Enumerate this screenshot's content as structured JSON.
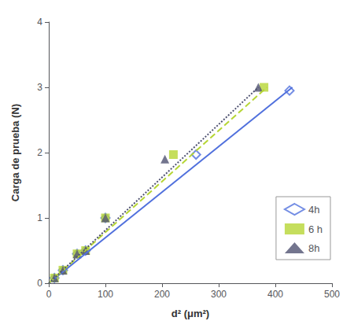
{
  "chart_data": {
    "type": "scatter",
    "xlabel": "d² (μm²)",
    "ylabel": "Carga de prueba (N)",
    "xlim": [
      0,
      500
    ],
    "ylim": [
      0,
      4
    ],
    "xticks": [
      0,
      100,
      200,
      300,
      400,
      500
    ],
    "yticks": [
      0,
      1,
      2,
      3,
      4
    ],
    "grid": false,
    "legend": "right",
    "series": [
      {
        "name": "4h",
        "marker": "open-diamond",
        "x": [
          10,
          25,
          50,
          65,
          100,
          260,
          425
        ],
        "values": [
          0.08,
          0.2,
          0.45,
          0.5,
          1.0,
          1.97,
          2.95
        ],
        "fit": {
          "x": [
            0,
            430
          ],
          "values": [
            0,
            3.0
          ],
          "line_style": "solid"
        }
      },
      {
        "name": "6 h",
        "marker": "square",
        "x": [
          10,
          25,
          50,
          65,
          100,
          220,
          380
        ],
        "values": [
          0.08,
          0.2,
          0.45,
          0.5,
          1.0,
          1.97,
          3.0
        ],
        "fit": {
          "x": [
            0,
            385
          ],
          "values": [
            0,
            3.0
          ],
          "line_style": "dashed"
        }
      },
      {
        "name": "8h",
        "marker": "triangle",
        "x": [
          10,
          25,
          50,
          65,
          100,
          205,
          370
        ],
        "values": [
          0.08,
          0.2,
          0.45,
          0.5,
          1.0,
          1.9,
          3.0
        ],
        "fit": {
          "x": [
            0,
            370
          ],
          "values": [
            0,
            3.0
          ],
          "line_style": "dotted"
        }
      }
    ]
  }
}
